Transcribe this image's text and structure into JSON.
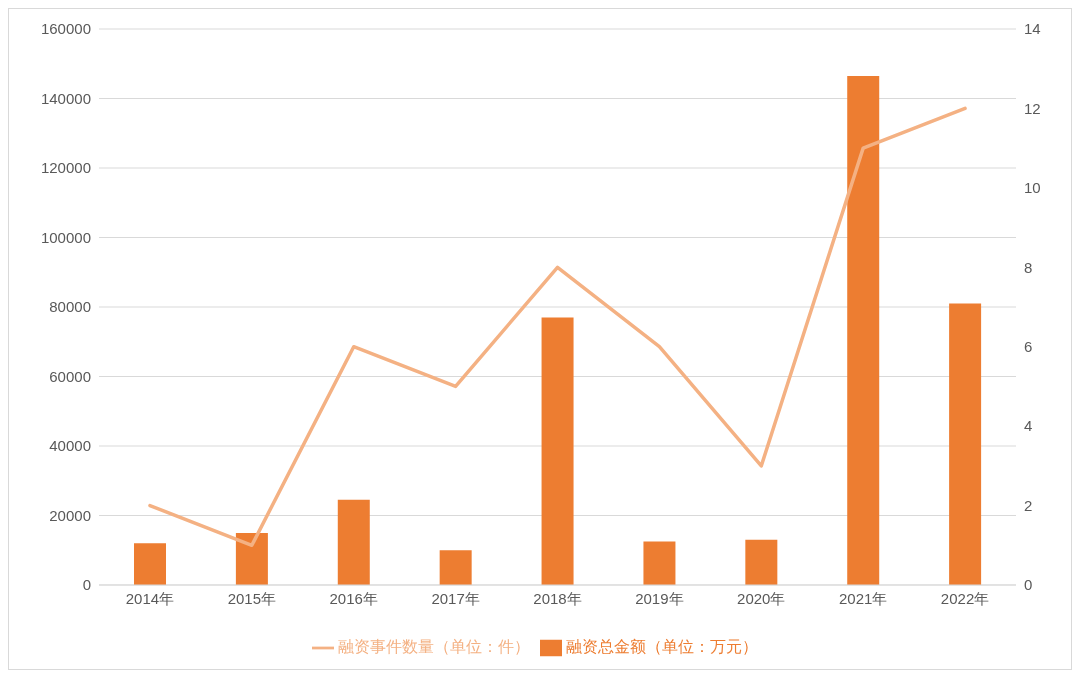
{
  "chart_data": {
    "type": "bar",
    "categories": [
      "2014年",
      "2015年",
      "2016年",
      "2017年",
      "2018年",
      "2019年",
      "2020年",
      "2021年",
      "2022年"
    ],
    "series": [
      {
        "name": "融资总金额（单位：万元）",
        "color": "#ed7d31",
        "values": [
          12000,
          15000,
          24500,
          10000,
          77000,
          12500,
          13000,
          146500,
          81000
        ]
      },
      {
        "name": "融资事件数量（单位：件）",
        "type": "line",
        "axis": "y2",
        "color": "#f4b183",
        "values": [
          2,
          1,
          6,
          5,
          8,
          6,
          3,
          11,
          12
        ]
      }
    ],
    "ylim": [
      0,
      160000
    ],
    "yticks": [
      0,
      20000,
      40000,
      60000,
      80000,
      100000,
      120000,
      140000,
      160000
    ],
    "y2lim": [
      0,
      14
    ],
    "y2ticks": [
      0,
      2,
      4,
      6,
      8,
      10,
      12,
      14
    ],
    "grid": "y",
    "legend": "bottom",
    "marker": "none",
    "line_style": "solid"
  }
}
